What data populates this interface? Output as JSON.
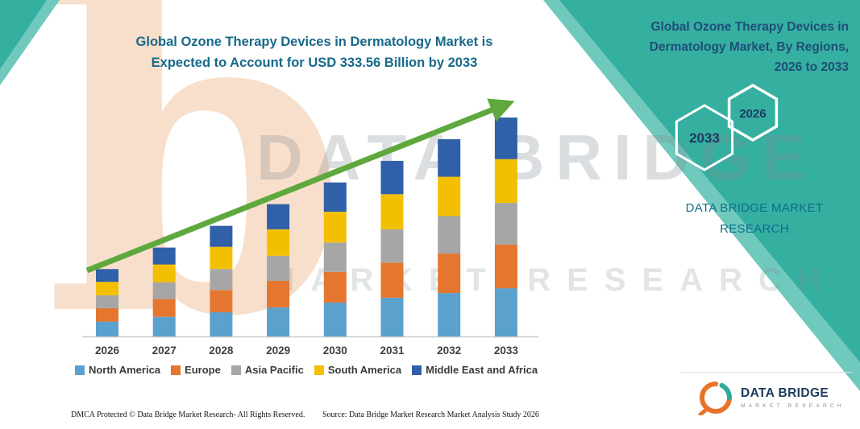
{
  "title": {
    "line1": "Global Ozone Therapy Devices in Dermatology Market is",
    "line2": "Expected to Account for USD 333.56 Billion by 2033"
  },
  "right_panel": {
    "heading_line1": "Global Ozone Therapy Devices in",
    "heading_line2": "Dermatology Market, By Regions,",
    "heading_line3": "2026 to 2033",
    "hexagon_left": "2033",
    "hexagon_right": "2026",
    "brand_line1": "DATA BRIDGE MARKET",
    "brand_line2": "RESEARCH"
  },
  "watermark": {
    "big_b": "b",
    "line1": "DATA BRIDGE",
    "line2": "MARKET RESEARCH"
  },
  "logo": {
    "name": "DATA BRIDGE",
    "tagline": "MARKET RESEARCH"
  },
  "footer": {
    "dmca": "DMCA Protected © Data Bridge Market Research-  All Rights Reserved.",
    "source": "Source: Data Bridge Market Research  Market Analysis Study 2026"
  },
  "colors": {
    "teal": "#35AFA0",
    "teal_light": "#6FC9BC",
    "title_text": "#17698A",
    "heading_text": "#1F4E79",
    "arrow_green": "#5EA83E"
  },
  "chart_data": {
    "type": "bar",
    "stacked": true,
    "title": "Global Ozone Therapy Devices in Dermatology Market is Expected to Account for USD 333.56 Billion by 2033",
    "unit": "USD Billion",
    "categories": [
      "2026",
      "2027",
      "2028",
      "2029",
      "2030",
      "2031",
      "2032",
      "2033"
    ],
    "series": [
      {
        "name": "North America",
        "color": "#5BA1CE",
        "values": [
          22.6,
          29.8,
          37.1,
          44.3,
          51.6,
          58.9,
          66.1,
          73.4
        ]
      },
      {
        "name": "Europe",
        "color": "#E5762F",
        "values": [
          20.5,
          27.1,
          33.7,
          40.3,
          46.9,
          53.5,
          60.1,
          66.7
        ]
      },
      {
        "name": "Asia Pacific",
        "color": "#A6A6A6",
        "values": [
          19.5,
          25.7,
          32.0,
          38.3,
          44.6,
          50.8,
          57.1,
          63.4
        ]
      },
      {
        "name": "South America",
        "color": "#F3C000",
        "values": [
          20.5,
          27.1,
          33.7,
          40.3,
          46.9,
          53.5,
          60.1,
          66.7
        ]
      },
      {
        "name": "Middle East and Africa",
        "color": "#3060A8",
        "values": [
          19.5,
          25.7,
          32.0,
          38.3,
          44.6,
          50.8,
          57.1,
          63.4
        ]
      }
    ],
    "totals": [
      102.6,
      135.4,
      168.5,
      201.5,
      234.6,
      267.6,
      300.5,
      333.56
    ],
    "ylim": [
      0,
      340
    ],
    "xlabel": "",
    "ylabel": "",
    "grid": false,
    "legend_position": "bottom",
    "trend_arrow": true
  }
}
